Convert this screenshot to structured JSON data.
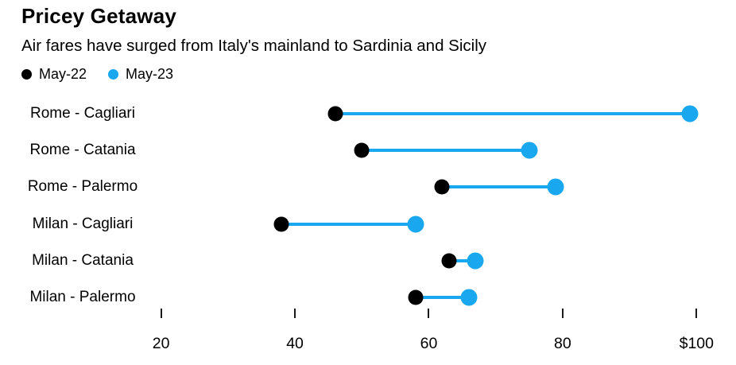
{
  "chart_data": {
    "type": "dumbbell",
    "title": "Pricey Getaway",
    "subtitle": "Air fares have surged from Italy's mainland to Sardinia and Sicily",
    "categories": [
      "Rome - Cagliari",
      "Rome - Catania",
      "Rome - Palermo",
      "Milan - Cagliari",
      "Milan - Catania",
      "Milan - Palermo"
    ],
    "series": [
      {
        "name": "May-22",
        "color": "#000000",
        "values": [
          46,
          50,
          62,
          38,
          63,
          58
        ]
      },
      {
        "name": "May-23",
        "color": "#19a8f0",
        "values": [
          99,
          75,
          79,
          58,
          67,
          66
        ]
      }
    ],
    "connector_color": "#19a8f0",
    "unit": "$",
    "xlim": [
      18.5,
      104
    ],
    "xticks": [
      {
        "value": 20,
        "label": "20"
      },
      {
        "value": 40,
        "label": "40"
      },
      {
        "value": 60,
        "label": "60"
      },
      {
        "value": 80,
        "label": "80"
      },
      {
        "value": 100,
        "label": "$100"
      }
    ],
    "legend_position": "top-left",
    "grid": false,
    "orientation": "horizontal"
  }
}
